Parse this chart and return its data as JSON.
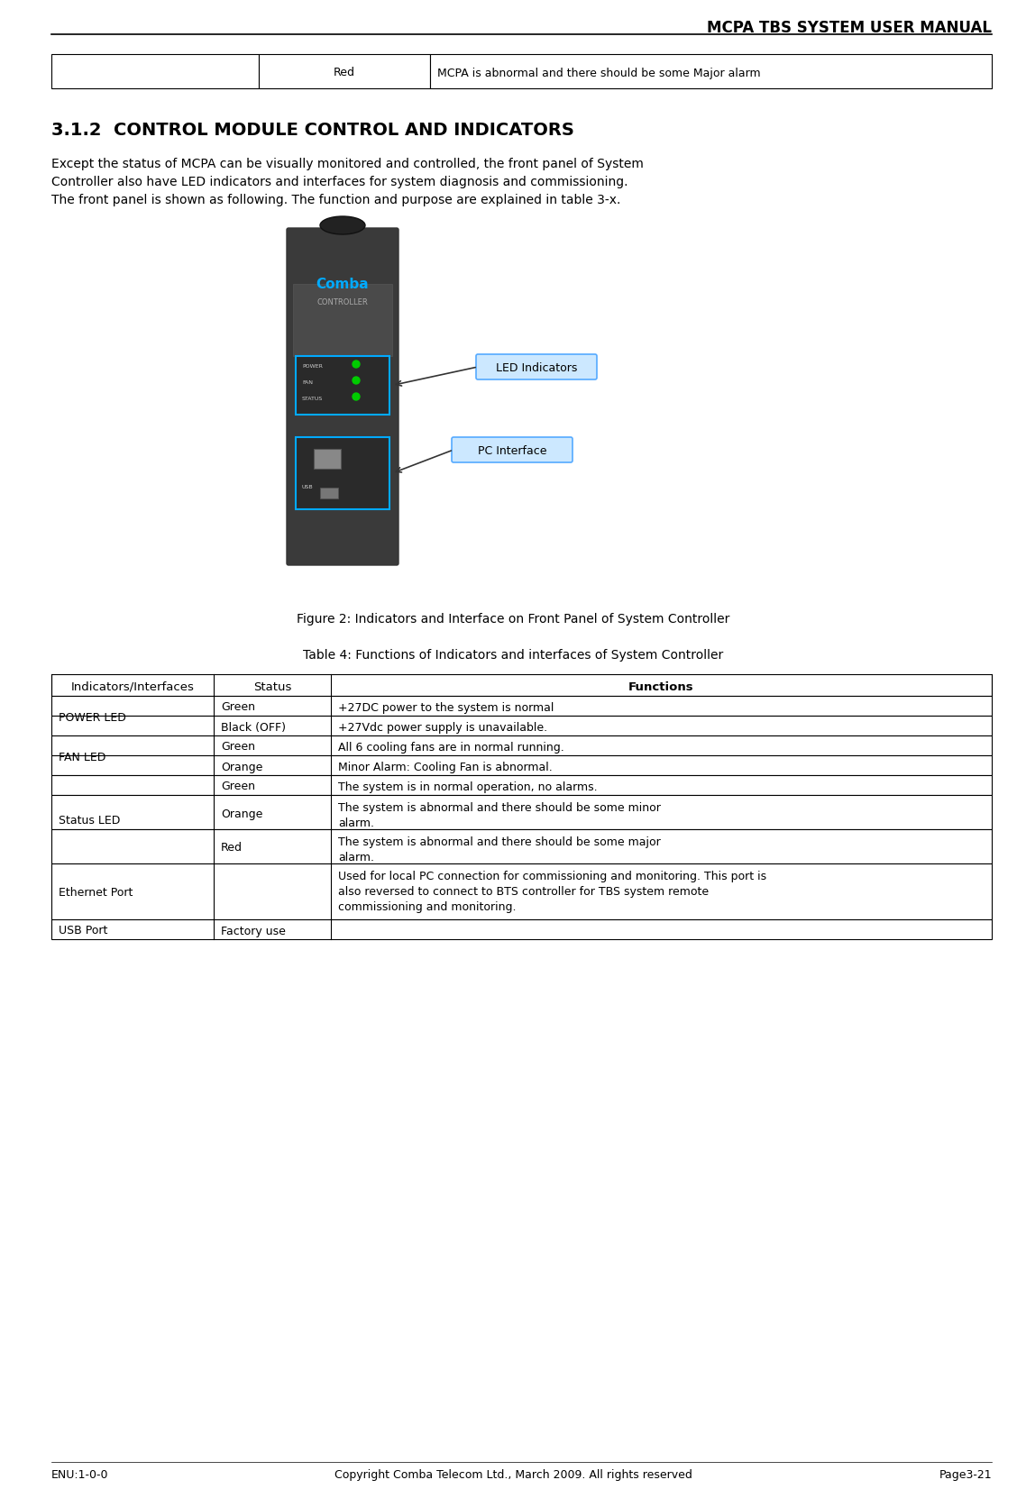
{
  "title": "MCPA TBS SYSTEM USER MANUAL",
  "section_title": "3.1.2  CONTROL MODULE CONTROL AND INDICATORS",
  "body_text": "Except the status of MCPA can be visually monitored and controlled, the front panel of System\nController also have LED indicators and interfaces for system diagnosis and commissioning.\nThe front panel is shown as following. The function and purpose are explained in table 3-x.",
  "figure_caption": "Figure 2: Indicators and Interface on Front Panel of System Controller",
  "table_caption": "Table 4: Functions of Indicators and interfaces of System Controller",
  "top_table": {
    "col1": "",
    "col2": "Red",
    "col3": "MCPA is abnormal and there should be some Major alarm"
  },
  "table_headers": [
    "Indicators/Interfaces",
    "Status",
    "Functions"
  ],
  "table_rows": [
    [
      "POWER LED",
      "Green",
      "+27DC power to the system is normal"
    ],
    [
      "",
      "Black (OFF)",
      "+27Vdc power supply is unavailable."
    ],
    [
      "FAN LED",
      "Green",
      "All 6 cooling fans are in normal running."
    ],
    [
      "",
      "Orange",
      "Minor Alarm: Cooling Fan is abnormal."
    ],
    [
      "Status LED",
      "Green",
      "The system is in normal operation, no alarms."
    ],
    [
      "",
      "Orange",
      "The system is abnormal and there should be some minor\nalarm."
    ],
    [
      "",
      "Red",
      "The system is abnormal and there should be some major\nalarm."
    ],
    [
      "Ethernet Port",
      "",
      "Used for local PC connection for commissioning and monitoring. This port is\nalso reversed to connect to BTS controller for TBS system remote\ncommissioning and monitoring."
    ],
    [
      "USB Port",
      "Factory use",
      ""
    ]
  ],
  "footer_left": "ENU:1-0-0",
  "footer_center": "Copyright Comba Telecom Ltd., March 2009. All rights reserved",
  "footer_right": "Page3-21",
  "label_led": "LED Indicators",
  "label_pc": "PC Interface",
  "bg_color": "#ffffff",
  "text_color": "#000000",
  "header_line_color": "#000000",
  "table_border_color": "#000000"
}
